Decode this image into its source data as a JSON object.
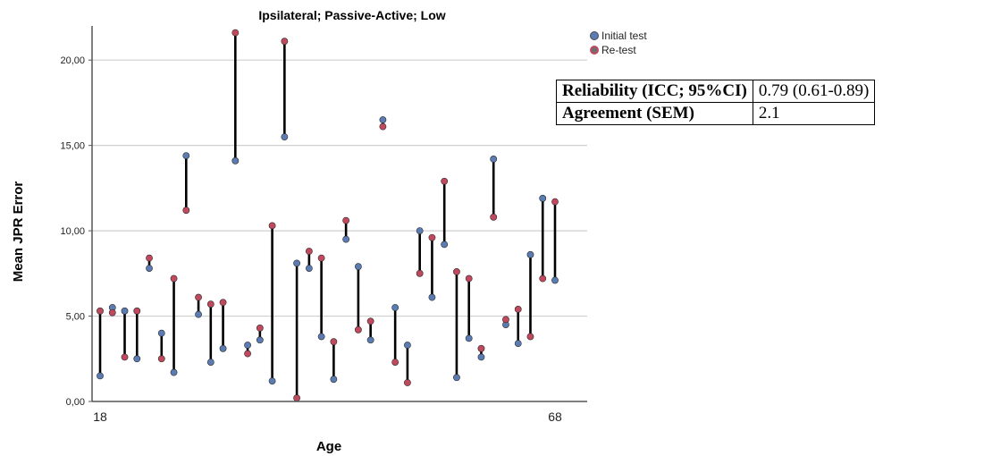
{
  "chart_data": {
    "type": "scatter",
    "title": "Ipsilateral; Passive-Active; Low",
    "xlabel": "Age",
    "ylabel": "Mean JPR Error",
    "ylim": [
      0,
      22
    ],
    "yticks": [
      "0,00",
      "5,00",
      "10,00",
      "15,00",
      "20,00"
    ],
    "xticks": [
      "18",
      "68"
    ],
    "grid": "horizontal",
    "legend_position": "top-right",
    "series": [
      {
        "name": "Initial test",
        "color": "#5b7bb3",
        "values": [
          1.5,
          5.5,
          5.3,
          2.5,
          7.8,
          4.0,
          1.7,
          14.4,
          5.1,
          2.3,
          3.1,
          14.1,
          3.3,
          3.6,
          1.2,
          15.5,
          8.1,
          7.8,
          3.8,
          1.3,
          9.5,
          7.9,
          3.6,
          16.5,
          5.5,
          3.3,
          10.0,
          6.1,
          9.2,
          1.4,
          3.7,
          2.6,
          14.2,
          4.5,
          3.4,
          8.6,
          11.9,
          7.1
        ]
      },
      {
        "name": "Re-test",
        "color": "#c0495e",
        "values": [
          5.3,
          5.2,
          2.6,
          5.3,
          8.4,
          2.5,
          7.2,
          11.2,
          6.1,
          5.7,
          5.8,
          21.6,
          2.8,
          4.3,
          10.3,
          21.1,
          0.2,
          8.8,
          8.4,
          3.5,
          10.6,
          4.2,
          4.7,
          16.1,
          2.3,
          1.1,
          7.5,
          9.6,
          12.9,
          7.6,
          7.2,
          3.1,
          10.8,
          4.8,
          5.4,
          3.8,
          7.2,
          11.7
        ]
      }
    ]
  },
  "stats_table": {
    "rows": [
      {
        "label": "Reliability (ICC; 95%CI)",
        "value": "0.79 (0.61-0.89)"
      },
      {
        "label": "Agreement (SEM)",
        "value": "2.1"
      }
    ]
  },
  "colors": {
    "axis": "#555555",
    "grid": "#cfcfcf",
    "connector": "#000000"
  }
}
